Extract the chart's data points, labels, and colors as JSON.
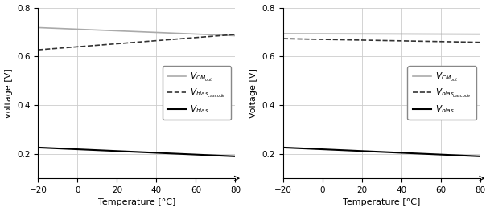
{
  "left": {
    "ylabel": "voltage [V]",
    "xlabel": "Temperature [°C]",
    "xlim": [
      -20,
      80
    ],
    "ylim": [
      0.1,
      0.8
    ],
    "yticks": [
      0.2,
      0.4,
      0.6,
      0.8
    ],
    "xticks": [
      -20,
      0,
      20,
      40,
      60,
      80
    ],
    "VCMout": {
      "x": [
        -20,
        80
      ],
      "y": [
        0.718,
        0.685
      ],
      "color": "#aaaaaa",
      "lw": 1.2,
      "ls": "solid"
    },
    "Vbias_cascode": {
      "x": [
        -20,
        80
      ],
      "y": [
        0.627,
        0.69
      ],
      "color": "#333333",
      "lw": 1.2,
      "ls": "dashed"
    },
    "Vbias": {
      "x": [
        -20,
        80
      ],
      "y": [
        0.226,
        0.19
      ],
      "color": "#000000",
      "lw": 1.5,
      "ls": "solid"
    }
  },
  "right": {
    "ylabel": "Voltage [V]",
    "xlabel": "Temperature [°C]",
    "xlim": [
      -20,
      80
    ],
    "ylim": [
      0.1,
      0.8
    ],
    "yticks": [
      0.2,
      0.4,
      0.6,
      0.8
    ],
    "xticks": [
      -20,
      0,
      20,
      40,
      60,
      80
    ],
    "VCMout": {
      "x": [
        -20,
        80
      ],
      "y": [
        0.693,
        0.691
      ],
      "color": "#aaaaaa",
      "lw": 1.2,
      "ls": "solid"
    },
    "Vbias_cascode": {
      "x": [
        -20,
        80
      ],
      "y": [
        0.673,
        0.658
      ],
      "color": "#333333",
      "lw": 1.2,
      "ls": "dashed"
    },
    "Vbias": {
      "x": [
        -20,
        80
      ],
      "y": [
        0.226,
        0.19
      ],
      "color": "#000000",
      "lw": 1.5,
      "ls": "solid"
    }
  },
  "legend": {
    "VCMout_label": "$V_{CM_{out}}$",
    "Vbias_cascode_label": "$V_{{bias}_{cascode}}$",
    "Vbias_label": "$V_{bias}$"
  },
  "grid_color": "#cccccc",
  "grid_lw": 0.6
}
